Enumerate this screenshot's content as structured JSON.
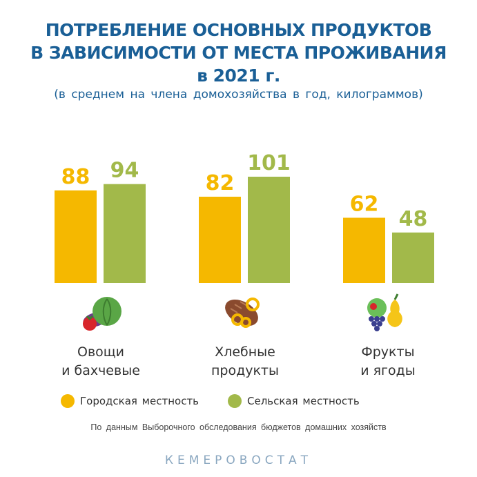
{
  "header": {
    "title_line1": "ПОТРЕБЛЕНИЕ ОСНОВНЫХ ПРОДУКТОВ",
    "title_line2": "В ЗАВИСИМОСТИ ОТ МЕСТА ПРОЖИВАНИЯ",
    "title_line3": "в 2021 г.",
    "subtitle": "(в среднем на члена домохозяйства в год, килограммов)"
  },
  "chart_data": {
    "type": "bar",
    "categories": [
      "Овощи и бахчевые",
      "Хлебные продукты",
      "Фрукты и ягоды"
    ],
    "category_lines": [
      [
        "Овощи",
        "и бахчевые"
      ],
      [
        "Хлебные",
        "продукты"
      ],
      [
        "Фрукты",
        "и ягоды"
      ]
    ],
    "category_icons": [
      "vegetables-icon",
      "bread-icon",
      "fruits-icon"
    ],
    "series": [
      {
        "name": "Городская местность",
        "color": "#f5b800",
        "values": [
          88,
          82,
          62
        ]
      },
      {
        "name": "Сельская местность",
        "color": "#a2b94a",
        "values": [
          94,
          101,
          48
        ]
      }
    ],
    "ylim": [
      0,
      105
    ],
    "grid": false,
    "legend": "bottom"
  },
  "legend": {
    "urban": "Городская местность",
    "rural": "Сельская местность"
  },
  "source": "По данным Выборочного обследования бюджетов домашних хозяйств",
  "brand": "КЕМЕРОВОСТАТ",
  "colors": {
    "title": "#1a5f96",
    "urban": "#f5b800",
    "rural": "#a2b94a",
    "brand": "#8aa7c0"
  }
}
